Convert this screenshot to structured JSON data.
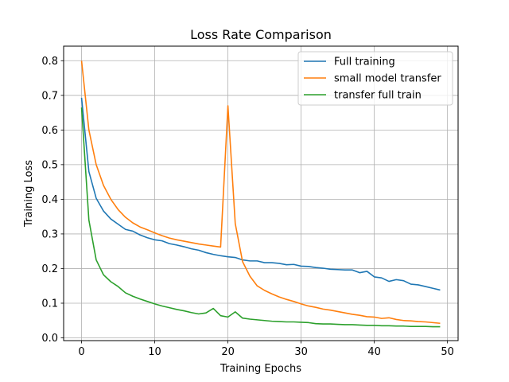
{
  "chart_data": {
    "type": "line",
    "title": "Loss Rate Comparison",
    "xlabel": "Training Epochs",
    "ylabel": "Training Loss",
    "xlim": [
      -2.45,
      51.45
    ],
    "ylim": [
      -0.008,
      0.842
    ],
    "x_ticks": [
      0,
      10,
      20,
      30,
      40,
      50
    ],
    "y_ticks": [
      0.0,
      0.1,
      0.2,
      0.3,
      0.4,
      0.5,
      0.6,
      0.7,
      0.8
    ],
    "grid": true,
    "legend_position": "top-right",
    "x": [
      0,
      1,
      2,
      3,
      4,
      5,
      6,
      7,
      8,
      9,
      10,
      11,
      12,
      13,
      14,
      15,
      16,
      17,
      18,
      19,
      20,
      21,
      22,
      23,
      24,
      25,
      26,
      27,
      28,
      29,
      30,
      31,
      32,
      33,
      34,
      35,
      36,
      37,
      38,
      39,
      40,
      41,
      42,
      43,
      44,
      45,
      46,
      47,
      48,
      49
    ],
    "series": [
      {
        "name": "Full training",
        "color": "#1f77b4",
        "values": [
          0.693,
          0.48,
          0.403,
          0.366,
          0.343,
          0.328,
          0.313,
          0.308,
          0.297,
          0.289,
          0.283,
          0.28,
          0.272,
          0.268,
          0.263,
          0.257,
          0.253,
          0.246,
          0.241,
          0.237,
          0.234,
          0.232,
          0.225,
          0.222,
          0.222,
          0.217,
          0.217,
          0.215,
          0.211,
          0.212,
          0.207,
          0.206,
          0.203,
          0.201,
          0.198,
          0.197,
          0.196,
          0.196,
          0.188,
          0.192,
          0.176,
          0.173,
          0.163,
          0.168,
          0.165,
          0.155,
          0.153,
          0.148,
          0.143,
          0.138
        ]
      },
      {
        "name": "small model transfer",
        "color": "#ff7f0e",
        "values": [
          0.8,
          0.6,
          0.5,
          0.44,
          0.4,
          0.37,
          0.348,
          0.332,
          0.32,
          0.312,
          0.303,
          0.295,
          0.288,
          0.283,
          0.279,
          0.275,
          0.271,
          0.268,
          0.265,
          0.262,
          0.67,
          0.33,
          0.22,
          0.178,
          0.15,
          0.137,
          0.127,
          0.118,
          0.111,
          0.105,
          0.098,
          0.092,
          0.088,
          0.083,
          0.08,
          0.076,
          0.072,
          0.068,
          0.065,
          0.061,
          0.06,
          0.056,
          0.058,
          0.053,
          0.05,
          0.049,
          0.047,
          0.046,
          0.044,
          0.042
        ]
      },
      {
        "name": "transfer full train",
        "color": "#2ca02c",
        "values": [
          0.665,
          0.34,
          0.225,
          0.182,
          0.162,
          0.148,
          0.13,
          0.12,
          0.112,
          0.105,
          0.098,
          0.092,
          0.087,
          0.082,
          0.078,
          0.073,
          0.069,
          0.072,
          0.085,
          0.064,
          0.06,
          0.075,
          0.057,
          0.054,
          0.052,
          0.05,
          0.048,
          0.047,
          0.046,
          0.046,
          0.045,
          0.044,
          0.041,
          0.04,
          0.04,
          0.039,
          0.038,
          0.038,
          0.037,
          0.036,
          0.036,
          0.035,
          0.035,
          0.034,
          0.034,
          0.033,
          0.033,
          0.033,
          0.032,
          0.032
        ]
      }
    ]
  }
}
